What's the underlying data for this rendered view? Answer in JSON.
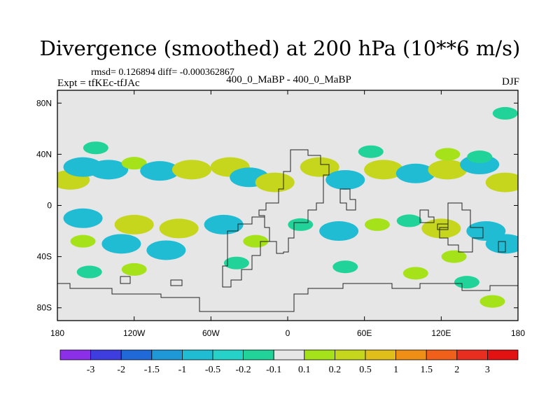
{
  "header": {
    "title": "Divergence (smoothed) at 200 hPa (10**6 m/s)",
    "stats": "rmsd= 0.126894 diff= -0.000362867",
    "experiment": "Expt = tfKEc-tfJAc",
    "comparison": "400_0_MaBP - 400_0_MaBP",
    "season": "DJF"
  },
  "chart_data": {
    "type": "heatmap",
    "projection": "cylindrical-equidistant",
    "x_tick_labels": [
      "180",
      "120W",
      "60W",
      "0",
      "60E",
      "120E",
      "180"
    ],
    "x_tick_values": [
      -180,
      -120,
      -60,
      0,
      60,
      120,
      180
    ],
    "y_tick_labels": [
      "80N",
      "40N",
      "0",
      "40S",
      "80S"
    ],
    "y_tick_values": [
      80,
      40,
      0,
      -40,
      -80
    ],
    "xlim": [
      -180,
      180
    ],
    "ylim": [
      -90,
      90
    ],
    "colorbar": {
      "levels": [
        "-3",
        "-2",
        "-1.5",
        "-1",
        "-0.5",
        "-0.2",
        "-0.1",
        "0.1",
        "0.2",
        "0.5",
        "1",
        "1.5",
        "2",
        "3"
      ],
      "colors": [
        "#8c2fe8",
        "#3e3ee0",
        "#1f6ad8",
        "#1f98d8",
        "#20bcd4",
        "#26d1c8",
        "#22d399",
        "#e6e6e6",
        "#a6e21a",
        "#c6d61c",
        "#e0bf1a",
        "#f08f16",
        "#f0601a",
        "#e82e1e",
        "#e21212"
      ],
      "missing_color": "#e6e6e6"
    },
    "field_colors": {
      "neg_strong": "#20bcd4",
      "neg_weak": "#22d399",
      "pos_weak": "#a6e21a",
      "pos_strong": "#c6d61c"
    },
    "anomaly_cells": [
      {
        "lon": -170,
        "lat": 20,
        "level": "pos_strong"
      },
      {
        "lon": -160,
        "lat": 30,
        "level": "neg_strong"
      },
      {
        "lon": -140,
        "lat": 28,
        "level": "neg_strong"
      },
      {
        "lon": -120,
        "lat": 33,
        "level": "pos_weak"
      },
      {
        "lon": -100,
        "lat": 27,
        "level": "neg_strong"
      },
      {
        "lon": -75,
        "lat": 28,
        "level": "pos_strong"
      },
      {
        "lon": -45,
        "lat": 30,
        "level": "pos_strong"
      },
      {
        "lon": -30,
        "lat": 22,
        "level": "neg_strong"
      },
      {
        "lon": -10,
        "lat": 18,
        "level": "pos_strong"
      },
      {
        "lon": 25,
        "lat": 30,
        "level": "pos_strong"
      },
      {
        "lon": 45,
        "lat": 20,
        "level": "neg_strong"
      },
      {
        "lon": 75,
        "lat": 28,
        "level": "pos_strong"
      },
      {
        "lon": 100,
        "lat": 25,
        "level": "neg_strong"
      },
      {
        "lon": 125,
        "lat": 28,
        "level": "pos_strong"
      },
      {
        "lon": 150,
        "lat": 32,
        "level": "neg_strong"
      },
      {
        "lon": 170,
        "lat": 18,
        "level": "pos_strong"
      },
      {
        "lon": -150,
        "lat": 45,
        "level": "neg_weak"
      },
      {
        "lon": 65,
        "lat": 42,
        "level": "neg_weak"
      },
      {
        "lon": 125,
        "lat": 40,
        "level": "pos_weak"
      },
      {
        "lon": 150,
        "lat": 38,
        "level": "neg_weak"
      },
      {
        "lon": 170,
        "lat": 72,
        "level": "neg_weak"
      },
      {
        "lon": -160,
        "lat": -10,
        "level": "neg_strong"
      },
      {
        "lon": -120,
        "lat": -15,
        "level": "pos_strong"
      },
      {
        "lon": -85,
        "lat": -18,
        "level": "pos_strong"
      },
      {
        "lon": -50,
        "lat": -15,
        "level": "neg_strong"
      },
      {
        "lon": -160,
        "lat": -28,
        "level": "pos_weak"
      },
      {
        "lon": -130,
        "lat": -30,
        "level": "neg_strong"
      },
      {
        "lon": -95,
        "lat": -35,
        "level": "neg_strong"
      },
      {
        "lon": -25,
        "lat": -28,
        "level": "pos_weak"
      },
      {
        "lon": 10,
        "lat": -15,
        "level": "neg_weak"
      },
      {
        "lon": 40,
        "lat": -20,
        "level": "neg_strong"
      },
      {
        "lon": 70,
        "lat": -15,
        "level": "pos_weak"
      },
      {
        "lon": 95,
        "lat": -12,
        "level": "neg_weak"
      },
      {
        "lon": 120,
        "lat": -18,
        "level": "pos_strong"
      },
      {
        "lon": 155,
        "lat": -20,
        "level": "neg_strong"
      },
      {
        "lon": 170,
        "lat": -30,
        "level": "neg_strong"
      },
      {
        "lon": 130,
        "lat": -40,
        "level": "pos_weak"
      },
      {
        "lon": -155,
        "lat": -52,
        "level": "neg_weak"
      },
      {
        "lon": -120,
        "lat": -50,
        "level": "pos_weak"
      },
      {
        "lon": -40,
        "lat": -45,
        "level": "neg_weak"
      },
      {
        "lon": 45,
        "lat": -48,
        "level": "neg_weak"
      },
      {
        "lon": 100,
        "lat": -53,
        "level": "pos_weak"
      },
      {
        "lon": 140,
        "lat": -60,
        "level": "neg_weak"
      },
      {
        "lon": 160,
        "lat": -75,
        "level": "pos_weak"
      }
    ]
  }
}
